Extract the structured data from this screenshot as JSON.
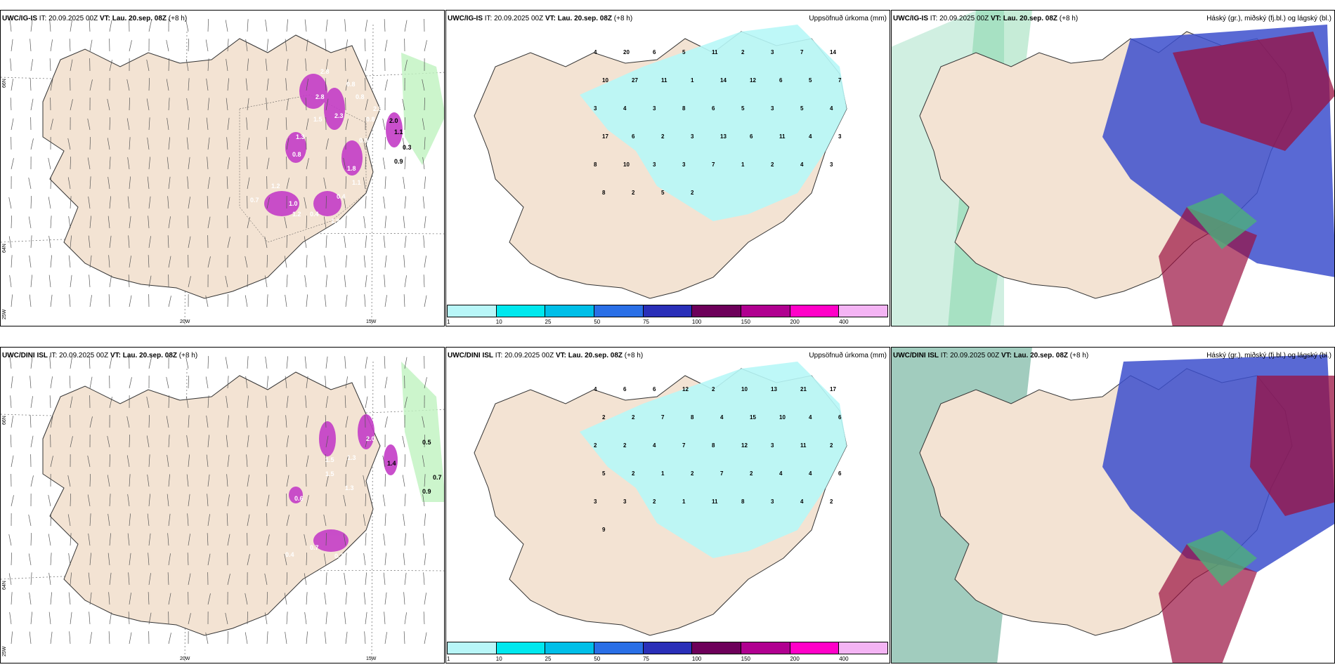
{
  "colors": {
    "land": "#f3e3d3",
    "precip_light": "#b7f7f7",
    "precip_mid": "#5ee6ee",
    "magenta": "#cc44cc",
    "blue_cloud": "#3c4fcc",
    "red_cloud": "#9a1040",
    "green": "#5cc98c"
  },
  "legend": {
    "colors": [
      "#b8f6f8",
      "#00e8ee",
      "#00bfe8",
      "#2a6fe6",
      "#2a2fb8",
      "#6d005a",
      "#b00090",
      "#ff00c8",
      "#f4b4f4"
    ],
    "ticks": [
      "1",
      "10",
      "25",
      "50",
      "75",
      "100",
      "150",
      "200",
      "400"
    ]
  },
  "rows": [
    {
      "model": "UWC/IG-IS",
      "it_label": "IT:",
      "it": "20.09.2025 00Z",
      "vt_label": "VT:",
      "vt": "Lau. 20.sep. 08Z",
      "lead": "(+8 h)",
      "wind_labels": [
        "2.8",
        "0.8",
        "0.8",
        "2.3",
        "2.0",
        "1.1",
        "0.3",
        "2.8",
        "2.3",
        "0.9",
        "1.5",
        "1.3",
        "0.8",
        "1.8",
        "1.2",
        "0.7",
        "1.2",
        "0.4",
        "0.4",
        "1.1",
        "1.9",
        "0.8",
        "0.9",
        "1.0"
      ],
      "precip_numbers": [
        "4",
        "20",
        "6",
        "5",
        "11",
        "2",
        "3",
        "7",
        "14",
        "10",
        "27",
        "11",
        "1",
        "14",
        "12",
        "6",
        "5",
        "7",
        "3",
        "4",
        "3",
        "8",
        "6",
        "5",
        "3",
        "5",
        "4",
        "17",
        "6",
        "2",
        "3",
        "13",
        "6",
        "11",
        "4",
        "3",
        "8",
        "10",
        "3",
        "3",
        "7",
        "1",
        "2",
        "4",
        "3",
        "8",
        "2",
        "5",
        "2"
      ]
    },
    {
      "model": "UWC/DINI ISL",
      "it_label": "IT:",
      "it": "20.09.2025 00Z",
      "vt_label": "VT:",
      "vt": "Lau. 20.sep. 08Z",
      "lead": "(+8 h)",
      "wind_labels": [
        "0.5",
        "0.7",
        "0.9",
        "2.0",
        "1.3",
        "1.5",
        "1.4",
        "1.5",
        "1.3",
        "0.6",
        "0.7",
        "0.4",
        "0.7",
        "0.6",
        "1.3"
      ],
      "precip_numbers": [
        "4",
        "6",
        "6",
        "12",
        "2",
        "10",
        "13",
        "21",
        "17",
        "2",
        "2",
        "7",
        "8",
        "4",
        "15",
        "10",
        "4",
        "6",
        "2",
        "2",
        "4",
        "7",
        "8",
        "12",
        "3",
        "11",
        "2",
        "5",
        "2",
        "1",
        "2",
        "7",
        "2",
        "4",
        "4",
        "6",
        "3",
        "3",
        "2",
        "1",
        "11",
        "8",
        "3",
        "4",
        "2",
        "9"
      ]
    }
  ],
  "precip_title": "Uppsöfnuð úrkoma (mm)",
  "cloud_title": "Háský (gr.), miðský (fj.bl.) og lágský (bl.)",
  "axes": {
    "lon_20": "20W",
    "lon_15": "15W",
    "lon_25": "25W",
    "lat_66": "66N",
    "lat_64": "64N"
  }
}
